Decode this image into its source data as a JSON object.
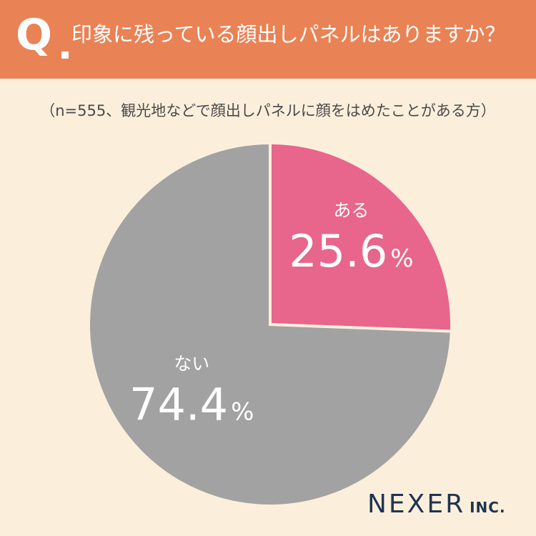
{
  "header": {
    "q_label": "Q",
    "question": "印象に残っている顔出しパネルはありますか？"
  },
  "note": "（n=555、観光地などで顔出しパネルに顔をはめたことがある方）",
  "chart_data": {
    "type": "pie",
    "title": "印象に残っている顔出しパネルはありますか？",
    "categories": [
      "ある",
      "ない"
    ],
    "values": [
      25.6,
      74.4
    ],
    "unit": "%",
    "colors": [
      "#E8658B",
      "#A2A2A2"
    ],
    "start": "12 o'clock",
    "direction": "clockwise"
  },
  "brand": {
    "name": "NEXER",
    "suffix": "INC."
  },
  "colors": {
    "header_bg": "#E98255",
    "page_bg": "#FBEFDC",
    "brand_text": "#1F3450"
  }
}
